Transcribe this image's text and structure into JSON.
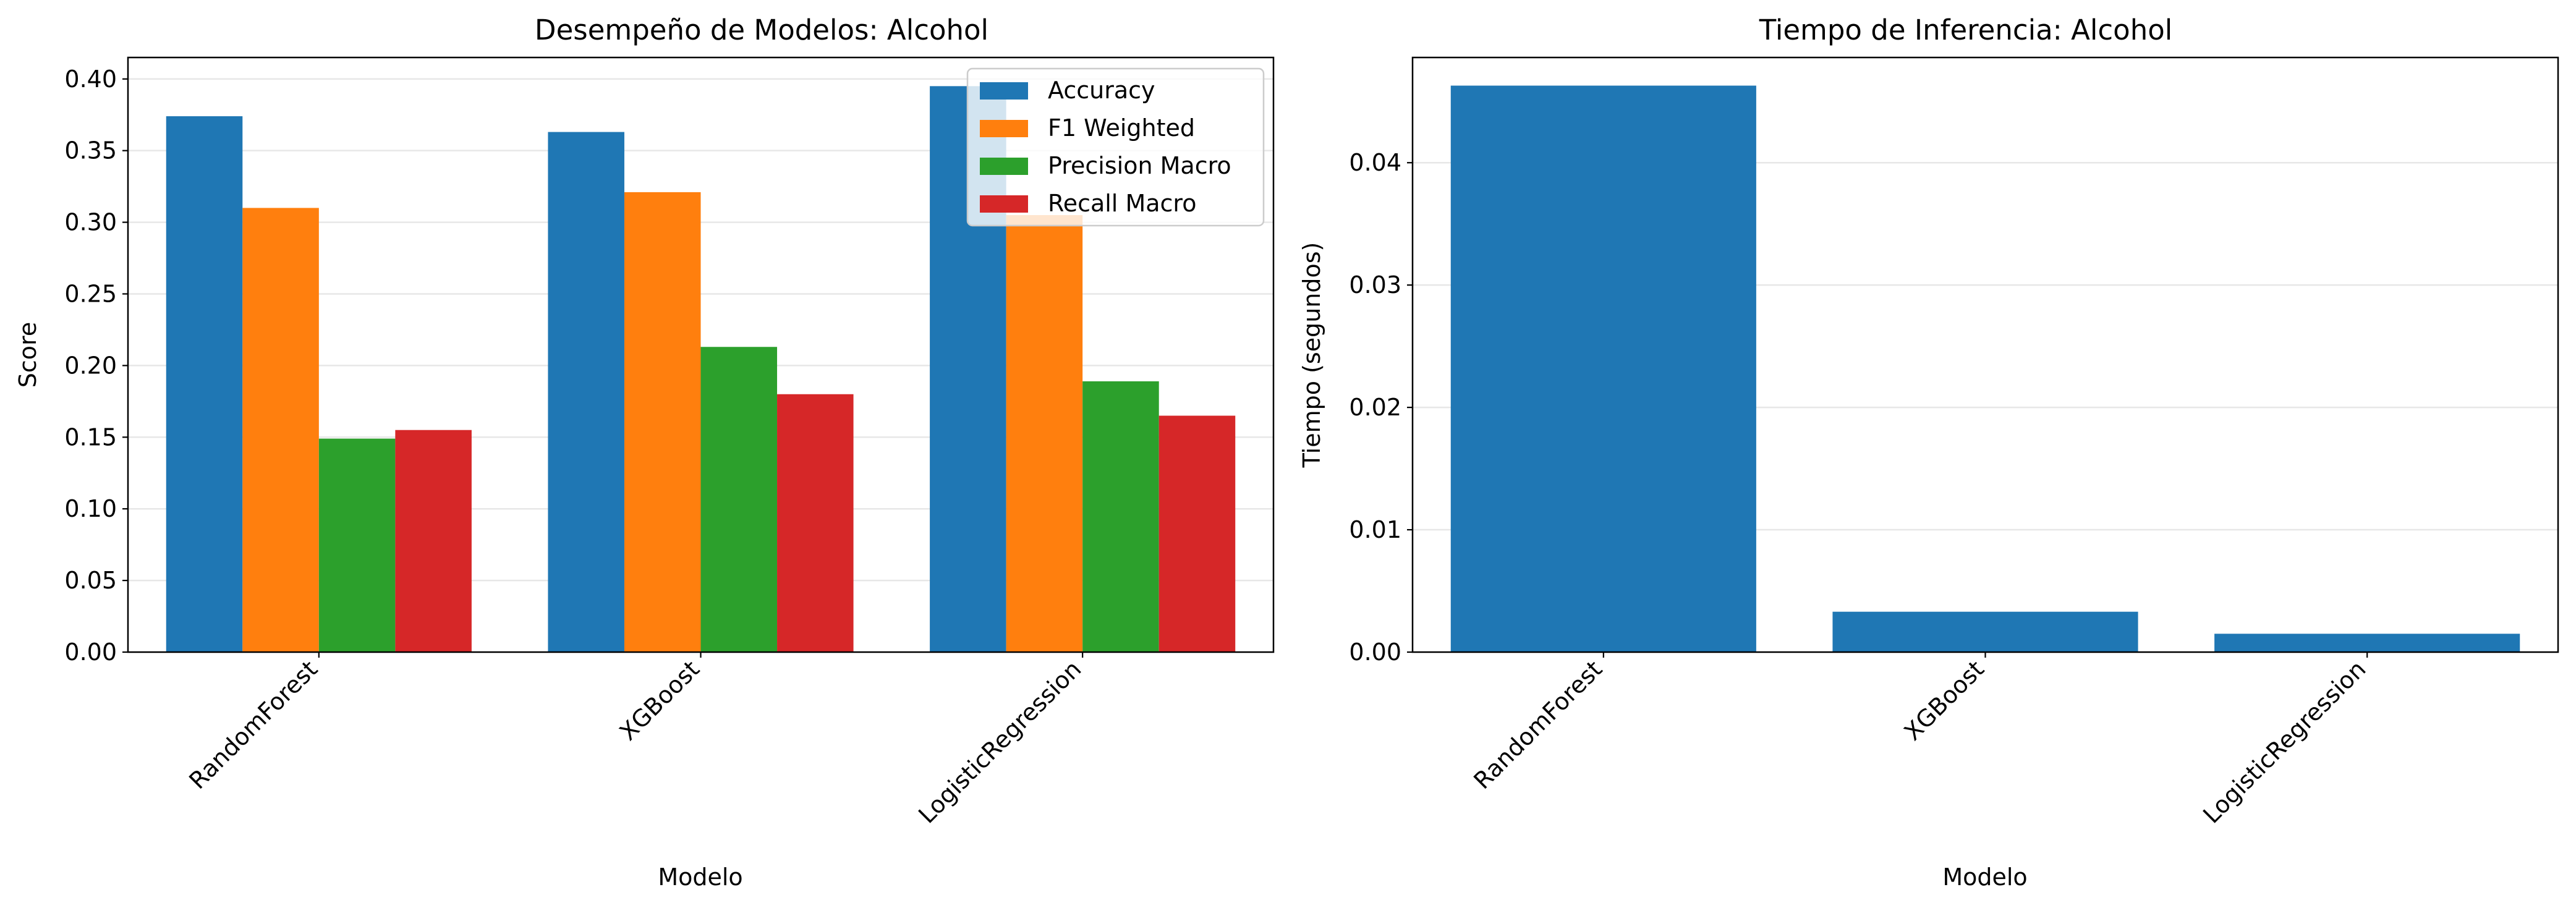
{
  "chart_data": [
    {
      "type": "bar",
      "title": "Desempeño de Modelos: Alcohol",
      "xlabel": "Modelo",
      "ylabel": "Score",
      "categories": [
        "RandomForest",
        "XGBoost",
        "LogisticRegression"
      ],
      "series": [
        {
          "name": "Accuracy",
          "color": "#1f77b4",
          "values": [
            0.374,
            0.363,
            0.395
          ]
        },
        {
          "name": "F1 Weighted",
          "color": "#ff7f0e",
          "values": [
            0.31,
            0.321,
            0.305
          ]
        },
        {
          "name": "Precision Macro",
          "color": "#2ca02c",
          "values": [
            0.149,
            0.213,
            0.189
          ]
        },
        {
          "name": "Recall Macro",
          "color": "#d62728",
          "values": [
            0.155,
            0.18,
            0.165
          ]
        }
      ],
      "ylim": [
        0,
        0.415
      ],
      "yticks": [
        0.0,
        0.05,
        0.1,
        0.15,
        0.2,
        0.25,
        0.3,
        0.35,
        0.4
      ],
      "ytick_labels": [
        "0.00",
        "0.05",
        "0.10",
        "0.15",
        "0.20",
        "0.25",
        "0.30",
        "0.35",
        "0.40"
      ],
      "grid": "horizontal",
      "legend_position": "top-right"
    },
    {
      "type": "bar",
      "title": "Tiempo de Inferencia: Alcohol",
      "xlabel": "Modelo",
      "ylabel": "Tiempo (segundos)",
      "categories": [
        "RandomForest",
        "XGBoost",
        "LogisticRegression"
      ],
      "series": [
        {
          "color": "#1f77b4",
          "values": [
            0.0463,
            0.0033,
            0.0015
          ]
        }
      ],
      "ylim": [
        0,
        0.0486
      ],
      "yticks": [
        0.0,
        0.01,
        0.02,
        0.03,
        0.04
      ],
      "ytick_labels": [
        "0.00",
        "0.01",
        "0.02",
        "0.03",
        "0.04"
      ],
      "grid": "horizontal"
    }
  ]
}
